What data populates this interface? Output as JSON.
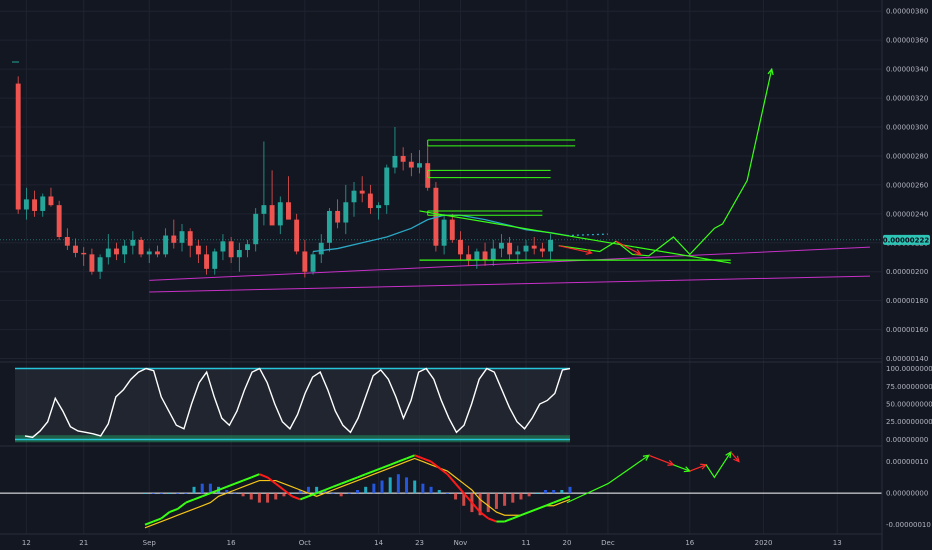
{
  "chart_data": [
    {
      "type": "candlestick",
      "panel": "price",
      "y_ticks": [
        "0.00000380",
        "0.00000360",
        "0.00000340",
        "0.00000320",
        "0.00000300",
        "0.00000280",
        "0.00000260",
        "0.00000240",
        "0.00000220",
        "0.00000200",
        "0.00000180",
        "0.00000160",
        "0.00000140"
      ],
      "y_tick_values": [
        380,
        360,
        340,
        320,
        300,
        280,
        260,
        240,
        220,
        200,
        180,
        160,
        140
      ],
      "ylim": [
        139,
        385
      ],
      "x_ticks": [
        "12",
        "21",
        "Sep",
        "16",
        "Oct",
        "14",
        "23",
        "Nov",
        "11",
        "20",
        "Dec",
        "16",
        "2020",
        "13"
      ],
      "x_tick_index": [
        2,
        9,
        17,
        27,
        36,
        45,
        50,
        55,
        63,
        68,
        73,
        83,
        92,
        101
      ],
      "x_range": [
        0,
        105
      ],
      "last_price": "0.00000222",
      "last_value": 222,
      "candles_ohlc": [
        [
          330,
          335,
          240,
          243
        ],
        [
          243,
          258,
          236,
          250
        ],
        [
          250,
          256,
          238,
          242
        ],
        [
          242,
          254,
          238,
          252
        ],
        [
          252,
          258,
          245,
          246
        ],
        [
          246,
          249,
          222,
          224
        ],
        [
          224,
          230,
          215,
          218
        ],
        [
          218,
          223,
          210,
          213
        ],
        [
          213,
          217,
          204,
          212
        ],
        [
          212,
          216,
          198,
          200
        ],
        [
          200,
          212,
          195,
          210
        ],
        [
          210,
          226,
          205,
          216
        ],
        [
          216,
          220,
          208,
          212
        ],
        [
          212,
          222,
          206,
          218
        ],
        [
          218,
          228,
          212,
          222
        ],
        [
          222,
          224,
          210,
          212
        ],
        [
          212,
          216,
          206,
          214
        ],
        [
          214,
          218,
          210,
          212
        ],
        [
          212,
          230,
          210,
          225
        ],
        [
          225,
          236,
          216,
          220
        ],
        [
          220,
          233,
          214,
          228
        ],
        [
          228,
          230,
          210,
          218
        ],
        [
          218,
          222,
          206,
          212
        ],
        [
          212,
          218,
          198,
          202
        ],
        [
          202,
          216,
          198,
          214
        ],
        [
          214,
          226,
          208,
          221
        ],
        [
          221,
          224,
          206,
          210
        ],
        [
          210,
          220,
          200,
          215
        ],
        [
          215,
          222,
          210,
          219
        ],
        [
          219,
          244,
          214,
          240
        ],
        [
          240,
          290,
          232,
          246
        ],
        [
          246,
          270,
          236,
          232
        ],
        [
          232,
          252,
          226,
          248
        ],
        [
          248,
          266,
          238,
          236
        ],
        [
          236,
          240,
          212,
          214
        ],
        [
          214,
          222,
          196,
          200
        ],
        [
          200,
          214,
          198,
          212
        ],
        [
          212,
          226,
          206,
          220
        ],
        [
          220,
          244,
          214,
          242
        ],
        [
          242,
          250,
          230,
          234
        ],
        [
          234,
          260,
          226,
          248
        ],
        [
          248,
          262,
          238,
          256
        ],
        [
          256,
          266,
          248,
          254
        ],
        [
          254,
          260,
          240,
          244
        ],
        [
          244,
          248,
          236,
          246
        ],
        [
          246,
          274,
          240,
          272
        ],
        [
          272,
          300,
          268,
          280
        ],
        [
          280,
          286,
          270,
          276
        ],
        [
          276,
          282,
          266,
          272
        ],
        [
          272,
          284,
          268,
          275
        ],
        [
          275,
          288,
          256,
          258
        ],
        [
          258,
          262,
          214,
          218
        ],
        [
          218,
          240,
          212,
          236
        ],
        [
          236,
          240,
          220,
          222
        ],
        [
          222,
          228,
          208,
          212
        ],
        [
          212,
          218,
          204,
          208
        ],
        [
          208,
          216,
          202,
          214
        ],
        [
          214,
          220,
          204,
          208
        ],
        [
          208,
          222,
          204,
          216
        ],
        [
          216,
          226,
          210,
          220
        ],
        [
          220,
          224,
          208,
          212
        ],
        [
          212,
          218,
          206,
          214
        ],
        [
          214,
          222,
          208,
          218
        ],
        [
          218,
          224,
          212,
          216
        ],
        [
          216,
          220,
          210,
          214
        ],
        [
          214,
          226,
          208,
          222
        ]
      ],
      "moving_average": [
        [
          37,
          214
        ],
        [
          40,
          216
        ],
        [
          43,
          220
        ],
        [
          46,
          224
        ],
        [
          49,
          230
        ],
        [
          51,
          236
        ],
        [
          53,
          239
        ],
        [
          55,
          239
        ],
        [
          58,
          236
        ],
        [
          61,
          232
        ],
        [
          63,
          229
        ],
        [
          66,
          227
        ],
        [
          68,
          225
        ]
      ],
      "ma_dotted_extension": [
        [
          68,
          225
        ],
        [
          73,
          226
        ]
      ],
      "horizontal_boxes": [
        [
          51,
          69,
          287,
          291
        ],
        [
          51,
          66,
          270,
          265
        ],
        [
          51,
          65,
          239,
          242
        ]
      ],
      "triangle_upper": [
        [
          50,
          242
        ],
        [
          88,
          206
        ]
      ],
      "triangle_lower": [
        [
          50,
          208
        ],
        [
          88,
          208
        ]
      ],
      "support_purple": [
        [
          17,
          194
        ],
        [
          105,
          217
        ]
      ],
      "support_purple_2": [
        [
          17,
          186
        ],
        [
          105,
          197
        ]
      ],
      "projection_green": [
        [
          67,
          218
        ],
        [
          72,
          214
        ],
        [
          74,
          221
        ],
        [
          76,
          212
        ],
        [
          78,
          211
        ],
        [
          81,
          224
        ],
        [
          83,
          212
        ],
        [
          86,
          230
        ],
        [
          87,
          233
        ],
        [
          90,
          263
        ],
        [
          93,
          340
        ]
      ],
      "projection_red": [
        [
          67,
          218
        ],
        [
          71,
          213
        ],
        [
          74,
          221
        ],
        [
          77,
          212
        ]
      ]
    },
    {
      "type": "line",
      "panel": "stochastic",
      "y_ticks": [
        "100.00000000",
        "75.00000000",
        "50.00000000",
        "25.00000000",
        "0.00000000"
      ],
      "y_tick_values": [
        100,
        75,
        50,
        25,
        0
      ],
      "ylim": [
        -5,
        105
      ],
      "band_upper": 100,
      "band_lower": 0,
      "values": [
        5,
        3,
        12,
        25,
        58,
        40,
        18,
        12,
        10,
        8,
        5,
        22,
        60,
        70,
        85,
        95,
        100,
        97,
        60,
        40,
        20,
        15,
        50,
        80,
        95,
        60,
        30,
        20,
        40,
        70,
        95,
        100,
        80,
        50,
        25,
        15,
        35,
        65,
        88,
        95,
        70,
        40,
        20,
        10,
        30,
        60,
        90,
        98,
        85,
        60,
        30,
        55,
        95,
        100,
        85,
        55,
        30,
        10,
        20,
        50,
        85,
        100,
        95,
        70,
        45,
        25,
        15,
        30,
        50,
        55,
        65,
        98,
        100
      ]
    },
    {
      "type": "line",
      "panel": "macd",
      "y_ticks": [
        "0.00000010",
        "0.00000000",
        "-0.00000010"
      ],
      "y_tick_values": [
        10,
        0,
        -10
      ],
      "ylim": [
        -12,
        14
      ],
      "macd_line": [
        -10,
        -9,
        -8,
        -6,
        -5,
        -3,
        -2,
        -1,
        0,
        1,
        2,
        3,
        4,
        5,
        6,
        5,
        3,
        1,
        -1,
        -2,
        -1,
        0,
        1,
        2,
        3,
        4,
        5,
        6,
        7,
        8,
        9,
        10,
        11,
        12,
        11,
        10,
        8,
        6,
        3,
        0,
        -3,
        -6,
        -8,
        -9,
        -9,
        -8,
        -7,
        -6,
        -5,
        -4,
        -3,
        -2,
        -1
      ],
      "signal_line": [
        -11,
        -10,
        -9,
        -8,
        -7,
        -6,
        -5,
        -4,
        -3,
        -1,
        0,
        1,
        2,
        3,
        4,
        4,
        4,
        3,
        2,
        1,
        0,
        -1,
        0,
        1,
        2,
        3,
        4,
        5,
        6,
        7,
        8,
        9,
        10,
        11,
        10,
        9,
        8,
        7,
        5,
        3,
        1,
        -2,
        -4,
        -6,
        -7,
        -7,
        -7,
        -6,
        -5,
        -4,
        -4,
        -3,
        -2
      ],
      "histogram": [
        0,
        0,
        0,
        0,
        0,
        0,
        2,
        3,
        3,
        2,
        1,
        0,
        -1,
        -2,
        -3,
        -3,
        -2,
        -1,
        0,
        1,
        2,
        2,
        1,
        0,
        -1,
        0,
        1,
        2,
        3,
        4,
        5,
        6,
        5,
        4,
        3,
        2,
        1,
        0,
        -2,
        -4,
        -6,
        -7,
        -6,
        -5,
        -4,
        -3,
        -2,
        -1,
        0,
        1,
        1,
        1,
        2
      ],
      "projection": [
        [
          68,
          -3
        ],
        [
          73,
          3
        ],
        [
          78,
          12
        ],
        [
          81,
          9
        ],
        [
          83,
          7
        ],
        [
          85,
          9
        ],
        [
          86,
          5
        ],
        [
          88,
          13
        ],
        [
          89,
          10
        ]
      ]
    }
  ]
}
